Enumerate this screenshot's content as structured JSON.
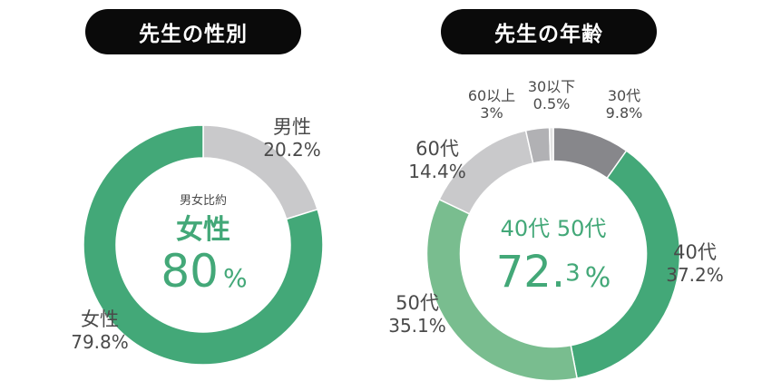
{
  "titles": {
    "gender": "先生の性別",
    "age": "先生の年齢"
  },
  "gender_center": {
    "caption": "男女比約",
    "label": "女性",
    "value": "80",
    "unit": "%"
  },
  "age_center": {
    "label_a": "40代",
    "label_b": "50代",
    "value_int": "72.",
    "value_sup": "3",
    "unit": "%"
  },
  "chart_data": [
    {
      "type": "pie",
      "donut": true,
      "title": "先生の性別",
      "categories": [
        "男性",
        "女性"
      ],
      "values": [
        20.2,
        79.8
      ],
      "value_labels": [
        "20.2%",
        "79.8%"
      ],
      "colors": [
        "#c9c9cb",
        "#43a878"
      ]
    },
    {
      "type": "pie",
      "donut": true,
      "title": "先生の年齢",
      "categories": [
        "30代",
        "40代",
        "50代",
        "60代",
        "60以上",
        "30以下"
      ],
      "values": [
        9.8,
        37.2,
        35.1,
        14.4,
        3,
        0.5
      ],
      "value_labels": [
        "9.8%",
        "37.2%",
        "35.1%",
        "14.4%",
        "3%",
        "0.5%"
      ],
      "colors": [
        "#87878b",
        "#43a878",
        "#79bd8f",
        "#c9c9cb",
        "#b1b1b4",
        "#e2e2e2"
      ]
    }
  ]
}
